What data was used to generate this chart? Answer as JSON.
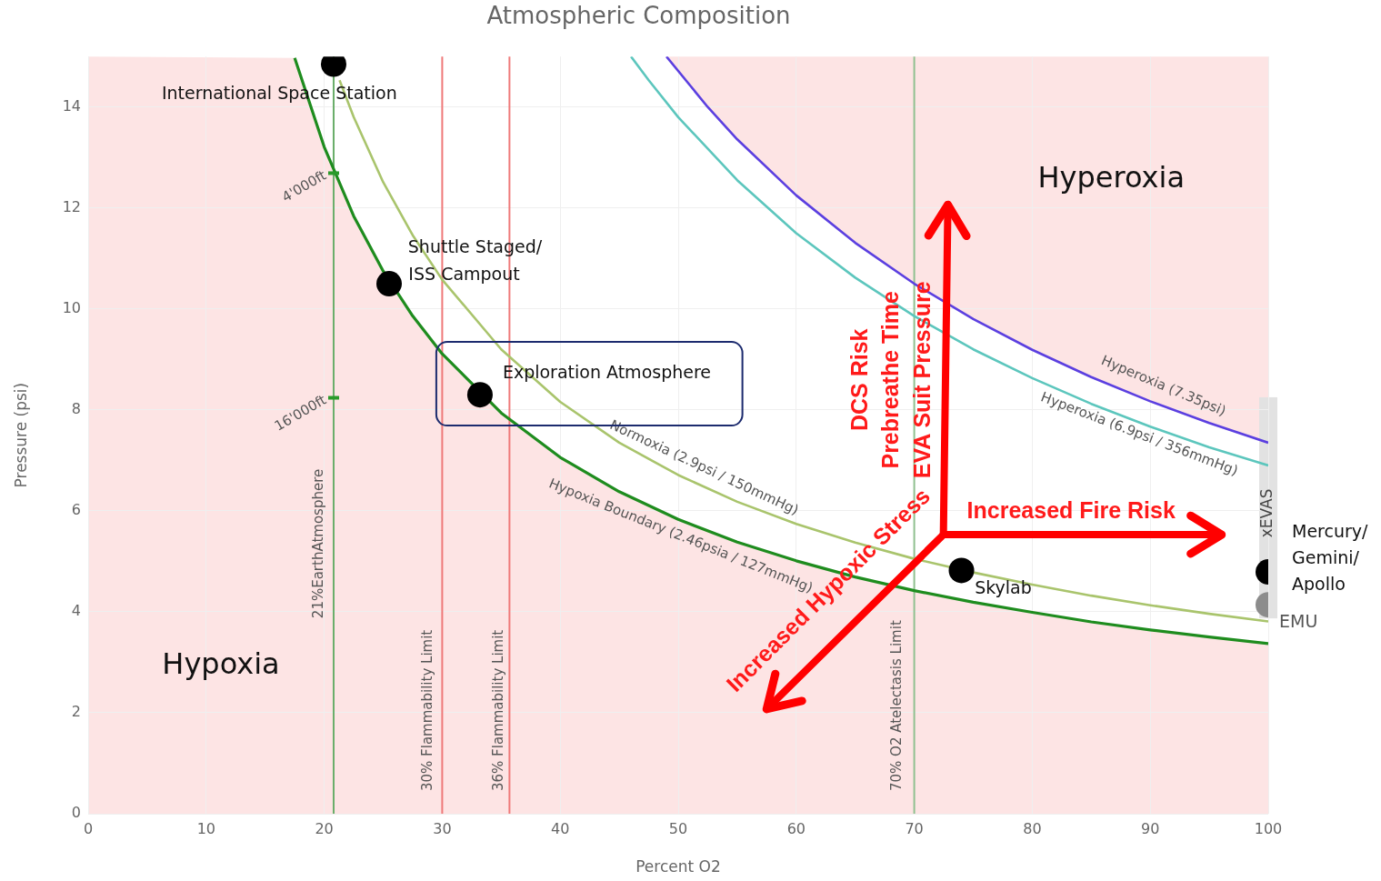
{
  "chart_data": {
    "type": "line",
    "title": "Atmospheric Composition",
    "xlabel": "Percent O2",
    "ylabel": "Pressure (psi)",
    "xlim": [
      0,
      100
    ],
    "xticks": [
      0,
      10,
      20,
      30,
      40,
      50,
      60,
      70,
      80,
      90,
      100
    ],
    "ylim": [
      0,
      15
    ],
    "yticks": [
      0,
      2,
      4,
      6,
      8,
      10,
      12,
      14
    ],
    "grid": true,
    "legend": false,
    "series": [
      {
        "color": "#1e8c1e",
        "x": [
          17.5,
          20,
          22.5,
          25,
          27.5,
          30,
          35,
          40,
          45,
          50,
          55,
          60,
          65,
          70,
          75,
          80,
          85,
          90,
          95,
          100
        ],
        "values": [
          14.97,
          13.21,
          11.84,
          10.75,
          9.86,
          9.11,
          7.94,
          7.06,
          6.38,
          5.83,
          5.38,
          5.01,
          4.69,
          4.42,
          4.19,
          3.99,
          3.8,
          3.64,
          3.5,
          3.37
        ]
      },
      {
        "color": "#a9c46c",
        "x": [
          21.3,
          22.5,
          25,
          27.5,
          30,
          35,
          40,
          45,
          50,
          55,
          60,
          65,
          70,
          75,
          80,
          85,
          90,
          95,
          100
        ],
        "values": [
          14.53,
          13.8,
          12.51,
          11.46,
          10.58,
          9.2,
          8.16,
          7.35,
          6.71,
          6.18,
          5.74,
          5.37,
          5.05,
          4.78,
          4.54,
          4.32,
          4.13,
          3.96,
          3.81
        ]
      },
      {
        "color": "#5cc6bd",
        "x": [
          46,
          47.5,
          50,
          55,
          60,
          65,
          70,
          75,
          80,
          85,
          90,
          95,
          100
        ],
        "values": [
          15,
          14.53,
          13.8,
          12.55,
          11.5,
          10.62,
          9.86,
          9.2,
          8.63,
          8.12,
          7.67,
          7.26,
          6.9
        ]
      },
      {
        "color": "#5b3fe0",
        "x": [
          49,
          52.5,
          55,
          60,
          65,
          70,
          75,
          80,
          85,
          90,
          95,
          100
        ],
        "values": [
          15,
          14,
          13.36,
          12.25,
          11.31,
          10.5,
          9.8,
          9.19,
          8.65,
          8.17,
          7.74,
          7.35
        ]
      },
      {
        "type": "scatter",
        "marker": "circle",
        "x": [
          20.8,
          25.5,
          33.2,
          74,
          100,
          100
        ],
        "values": [
          14.85,
          10.5,
          8.3,
          4.82,
          4.79,
          4.14
        ],
        "colors": [
          "#000000",
          "#000000",
          "#000000",
          "#000000",
          "#000000",
          "#8c8c8c"
        ]
      }
    ],
    "ref_lines": [
      {
        "axis": "x",
        "value": 20.8,
        "label": "21%EarthAtmosphere",
        "color": "#6aae6a"
      },
      {
        "axis": "x",
        "value": 30,
        "label": "30% Flammability Limit",
        "color": "#ef7a7a"
      },
      {
        "axis": "x",
        "value": 35.7,
        "label": "36% Flammability Limit",
        "color": "#ef7a7a"
      },
      {
        "axis": "x",
        "value": 70,
        "label": "70% O2 Atelectasis Limit",
        "color": "#8fc08f"
      }
    ],
    "annotations": [
      "Hypoxia",
      "Hyperoxia",
      "International Space Station",
      "Shuttle Staged/",
      "ISS Campout",
      "Exploration Atmosphere",
      "Skylab",
      "Mercury/",
      "Gemini/",
      "Apollo",
      "EMU",
      {
        "text": "4'000ft",
        "x": 20.8,
        "y": 12.69
      },
      {
        "text": "16'000ft",
        "x": 20.8,
        "y": 8.24
      },
      "Hyperoxia (7.35psi)",
      "Hyperoxia (6.9psi / 356mmHg)",
      "Normoxia (2.9psi / 150mmHg)",
      "Hypoxia Boundary (2.46psia / 127mmHg)",
      "DCS Risk",
      "Prebreathe Time",
      "EVA Suit Pressure",
      "Increased Fire Risk",
      "Increased Hypoxic Stress",
      "xEVAS"
    ]
  }
}
